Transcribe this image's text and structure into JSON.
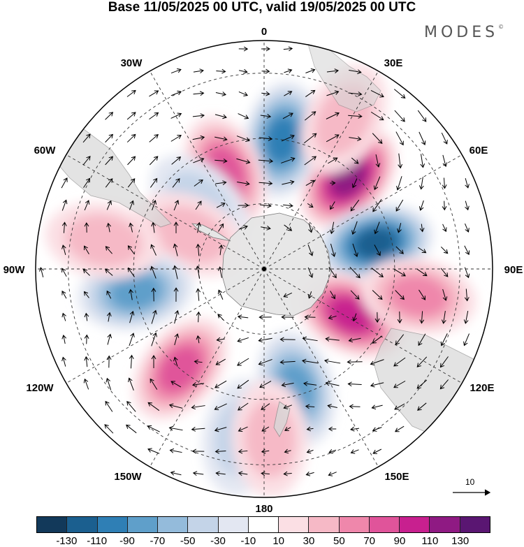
{
  "header": {
    "title": "Base 11/05/2025 00 UTC, valid 19/05/2025 00 UTC",
    "logo": "MODES",
    "logo_mark": "©"
  },
  "map": {
    "projection": "south-polar-stereographic",
    "lon_labels": [
      "0",
      "30E",
      "60E",
      "90E",
      "120E",
      "150E",
      "180",
      "150W",
      "120W",
      "90W",
      "60W",
      "30W"
    ],
    "reference_vector_label": "10",
    "anomaly_centers": [
      {
        "lat": -52,
        "lon": 43,
        "value": 120
      },
      {
        "lat": -55,
        "lon": 77,
        "value": -120
      },
      {
        "lat": -50,
        "lon": 8,
        "value": -100
      },
      {
        "lat": -60,
        "lon": 118,
        "value": 90
      },
      {
        "lat": -58,
        "lon": -22,
        "value": 70
      },
      {
        "lat": -62,
        "lon": -45,
        "value": -40
      },
      {
        "lat": -65,
        "lon": -65,
        "value": 40
      },
      {
        "lat": -50,
        "lon": -100,
        "value": -80
      },
      {
        "lat": -50,
        "lon": -140,
        "value": 80
      },
      {
        "lat": -52,
        "lon": 165,
        "value": -80
      },
      {
        "lat": -38,
        "lon": -172,
        "value": -40
      },
      {
        "lat": -38,
        "lon": 178,
        "value": 40
      },
      {
        "lat": -42,
        "lon": 100,
        "value": 50
      },
      {
        "lat": -38,
        "lon": 28,
        "value": 40
      },
      {
        "lat": -40,
        "lon": -80,
        "value": 40
      }
    ]
  },
  "colorbar": {
    "colors": [
      "#12395a",
      "#1b5f8f",
      "#2f7fb5",
      "#5f9fca",
      "#94bbdb",
      "#c4d4e8",
      "#e3e7f2",
      "#ffffff",
      "#fbdfe4",
      "#f6b9c6",
      "#ef87ab",
      "#e0549a",
      "#c8208f",
      "#8f1a83",
      "#5a1672"
    ],
    "labels": [
      "-130",
      "-110",
      "-90",
      "-70",
      "-50",
      "-30",
      "-10",
      "10",
      "30",
      "50",
      "70",
      "90",
      "110",
      "130"
    ]
  }
}
